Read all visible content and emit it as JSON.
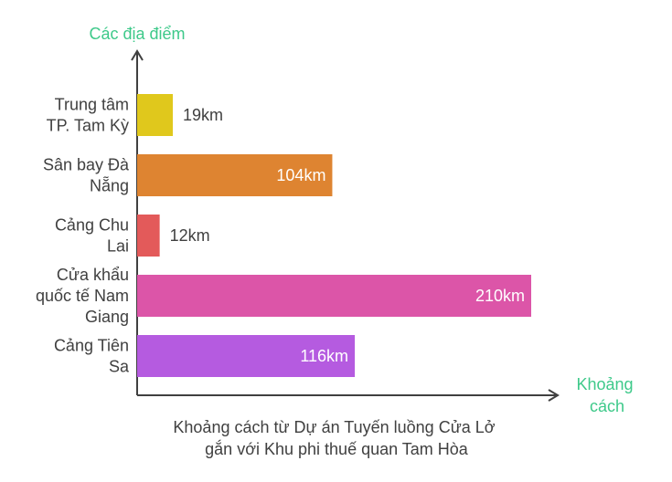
{
  "chart_data": {
    "type": "bar",
    "orientation": "horizontal",
    "ylabel": "Các địa điểm",
    "xlabel": "Khoảng cách",
    "caption": "Khoảng cách từ Dự án Tuyến luồng Cửa Lở gắn với Khu phi thuế quan Tam Hòa",
    "xlim": [
      0,
      230
    ],
    "unit": "km",
    "grid": false,
    "categories": [
      "Trung tâm TP. Tam Kỳ",
      "Sân bay Đà Nẵng",
      "Cảng Chu Lai",
      "Cửa khẩu quốc tế Nam Giang",
      "Cảng Tiên Sa"
    ],
    "values": [
      19,
      104,
      12,
      210,
      116
    ],
    "value_labels": [
      "19km",
      "104km",
      "12km",
      "210km",
      "116km"
    ],
    "colors": [
      "#e0c81c",
      "#de8431",
      "#e35a5a",
      "#dc55a8",
      "#b55be0"
    ]
  }
}
